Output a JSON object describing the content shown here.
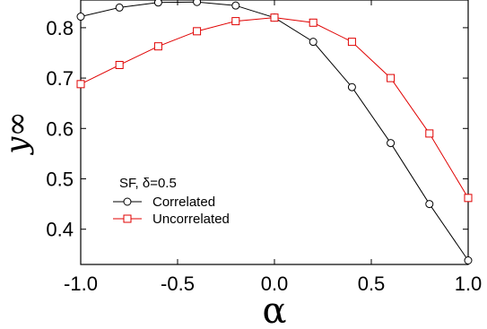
{
  "chart_data": {
    "type": "line",
    "xlabel": "α",
    "ylabel": "y∞",
    "xlim": [
      -1.0,
      1.0
    ],
    "ylim": [
      0.33,
      0.855
    ],
    "x_ticks": [
      -1.0,
      -0.5,
      0.0,
      0.5,
      1.0
    ],
    "x_tick_labels": [
      "-1.0",
      "-0.5",
      "0.0",
      "0.5",
      "1.0"
    ],
    "y_ticks": [
      0.4,
      0.5,
      0.6,
      0.7,
      0.8
    ],
    "y_tick_labels": [
      "0.4",
      "0.5",
      "0.6",
      "0.7",
      "0.8"
    ],
    "grid": false,
    "legend_title": "SF, δ=0.5",
    "legend_placement": "lower-left",
    "x": [
      -1.0,
      -0.8,
      -0.6,
      -0.4,
      -0.2,
      0.0,
      0.2,
      0.4,
      0.6,
      0.8,
      1.0
    ],
    "series": [
      {
        "name": "Correlated",
        "color": "#000000",
        "marker": "circle",
        "values": [
          0.822,
          0.84,
          0.85,
          0.851,
          0.844,
          0.82,
          0.772,
          0.682,
          0.571,
          0.45,
          0.338
        ]
      },
      {
        "name": "Uncorrelated",
        "color": "#e00000",
        "marker": "square",
        "values": [
          0.688,
          0.726,
          0.763,
          0.793,
          0.813,
          0.82,
          0.81,
          0.772,
          0.7,
          0.59,
          0.462
        ]
      }
    ]
  }
}
